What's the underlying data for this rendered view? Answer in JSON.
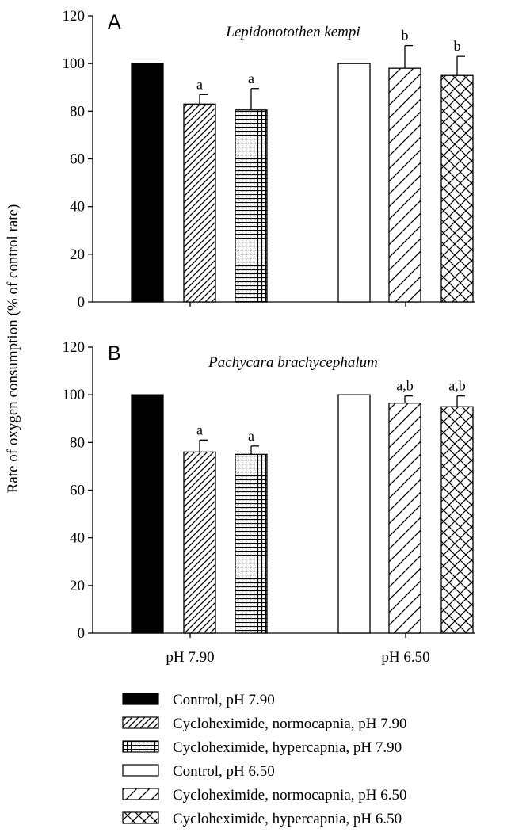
{
  "figure": {
    "ylabel": "Rate of oxygen consumption (% of control rate)",
    "xcategories": [
      "pH 7.90",
      "pH 6.50"
    ]
  },
  "chart_data": [
    {
      "type": "bar",
      "panel": "A",
      "title": "Lepidonotothen kempi",
      "ylabel": "Rate of oxygen consumption (% of control rate)",
      "ylim": [
        0,
        120
      ],
      "yticks": [
        0,
        20,
        40,
        60,
        80,
        100,
        120
      ],
      "categories": [
        "pH 7.90",
        "pH 6.50"
      ],
      "bars": [
        {
          "legend": 0,
          "group": 0,
          "value": 100,
          "error": 0,
          "label": ""
        },
        {
          "legend": 1,
          "group": 0,
          "value": 83,
          "error": 4,
          "label": "a"
        },
        {
          "legend": 2,
          "group": 0,
          "value": 80.5,
          "error": 9,
          "label": "a"
        },
        {
          "legend": 3,
          "group": 1,
          "value": 100,
          "error": 0,
          "label": ""
        },
        {
          "legend": 4,
          "group": 1,
          "value": 98,
          "error": 9.5,
          "label": "b"
        },
        {
          "legend": 5,
          "group": 1,
          "value": 95,
          "error": 8,
          "label": "b"
        }
      ]
    },
    {
      "type": "bar",
      "panel": "B",
      "title": "Pachycara brachycephalum",
      "ylabel": "Rate of oxygen consumption (% of control rate)",
      "ylim": [
        0,
        120
      ],
      "yticks": [
        0,
        20,
        40,
        60,
        80,
        100,
        120
      ],
      "categories": [
        "pH 7.90",
        "pH 6.50"
      ],
      "bars": [
        {
          "legend": 0,
          "group": 0,
          "value": 100,
          "error": 0,
          "label": ""
        },
        {
          "legend": 1,
          "group": 0,
          "value": 76,
          "error": 5,
          "label": "a"
        },
        {
          "legend": 2,
          "group": 0,
          "value": 75,
          "error": 3.5,
          "label": "a"
        },
        {
          "legend": 3,
          "group": 1,
          "value": 100,
          "error": 0,
          "label": ""
        },
        {
          "legend": 4,
          "group": 1,
          "value": 96.5,
          "error": 3,
          "label": "a,b"
        },
        {
          "legend": 5,
          "group": 1,
          "value": 95,
          "error": 4.5,
          "label": "a,b"
        }
      ]
    }
  ],
  "legend": [
    {
      "label": "Control, pH 7.90",
      "pattern": "solid-black"
    },
    {
      "label": "Cycloheximide, normocapnia, pH 7.90",
      "pattern": "dense-diagonal"
    },
    {
      "label": "Cycloheximide, hypercapnia, pH 7.90",
      "pattern": "grid"
    },
    {
      "label": "Control, pH 6.50",
      "pattern": "white"
    },
    {
      "label": "Cycloheximide, normocapnia, pH 6.50",
      "pattern": "sparse-diagonal"
    },
    {
      "label": "Cycloheximide, hypercapnia, pH 6.50",
      "pattern": "crosshatch"
    }
  ]
}
